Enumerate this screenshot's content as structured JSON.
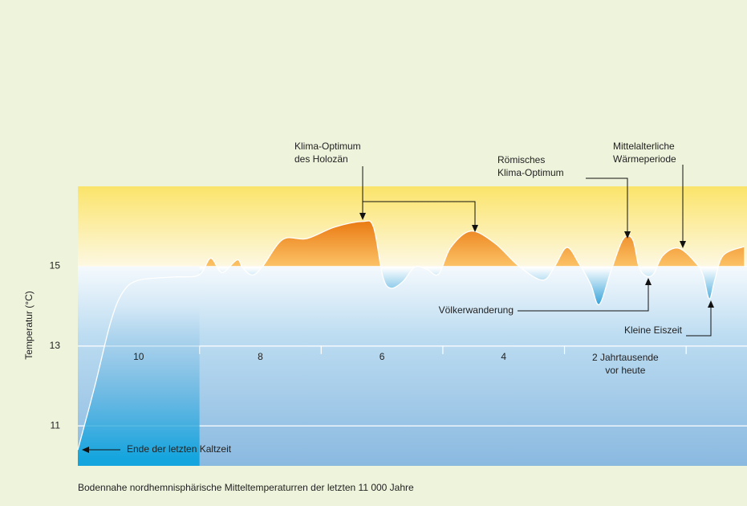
{
  "chart_data": {
    "type": "line",
    "ylabel": "Temperatur (°C)",
    "caption": "Bodennahe nordhemnisphärische Mitteltemperaturren der letzten 11 000 Jahre",
    "xlim": [
      11,
      0
    ],
    "ylim": [
      10,
      17
    ],
    "yticks": [
      11,
      13,
      15
    ],
    "xticks": [
      10,
      8,
      6,
      4,
      {
        "value": 2,
        "label": "2 Jahrtausende vor heute"
      }
    ],
    "xminor_ticks": [
      9,
      7,
      5,
      3,
      1
    ],
    "grid": true,
    "color": "#ffffff",
    "x": [
      11.0,
      10.72,
      10.46,
      10.26,
      10.0,
      9.41,
      9.01,
      8.82,
      8.68,
      8.59,
      8.38,
      8.29,
      8.13,
      7.96,
      7.63,
      7.24,
      6.78,
      6.32,
      6.14,
      5.99,
      5.86,
      5.66,
      5.46,
      5.26,
      5.07,
      4.87,
      4.54,
      4.14,
      3.75,
      3.36,
      3.16,
      2.96,
      2.76,
      2.57,
      2.43,
      2.24,
      2.04,
      1.88,
      1.78,
      1.67,
      1.54,
      1.38,
      1.12,
      0.83,
      0.72,
      0.62,
      0.53,
      0.39,
      0.05
    ],
    "values": [
      10.4,
      12.0,
      13.6,
      14.35,
      14.65,
      14.73,
      14.78,
      15.2,
      14.9,
      14.86,
      15.16,
      14.96,
      14.78,
      15.0,
      15.67,
      15.69,
      15.98,
      16.12,
      15.98,
      14.76,
      14.45,
      14.61,
      14.98,
      14.92,
      14.8,
      15.47,
      15.88,
      15.57,
      15.0,
      14.65,
      15.0,
      15.47,
      15.06,
      14.55,
      14.04,
      14.86,
      15.67,
      15.67,
      15.0,
      14.76,
      14.8,
      15.27,
      15.45,
      15.06,
      14.76,
      14.18,
      14.65,
      15.27,
      15.49
    ],
    "annotations": [
      {
        "lines": [
          "Klima-Optimum",
          "des  Holozän"
        ]
      },
      {
        "lines": [
          "Römisches",
          "Klima-Optimum"
        ]
      },
      {
        "lines": [
          "Mittelalterliche",
          "Wärmeperiode"
        ]
      },
      {
        "lines": [
          "Völkerwanderung"
        ]
      },
      {
        "lines": [
          "Kleine Eiszeit"
        ]
      },
      {
        "lines": [
          "Ende der letzten Kaltzeit"
        ]
      }
    ]
  }
}
